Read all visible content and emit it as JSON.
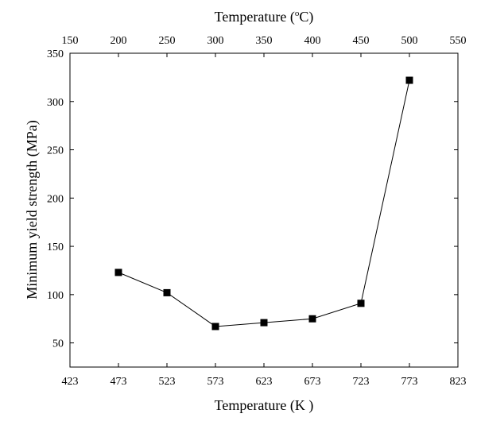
{
  "chart_data": {
    "type": "line",
    "xlabel": "Temperature (K )",
    "ylabel": "Minimum yield strength (MPa)",
    "x2label": "Temperature (°C)",
    "xlim": [
      423,
      823
    ],
    "ylim": [
      25,
      350
    ],
    "x_ticks": [
      423,
      473,
      523,
      573,
      623,
      673,
      723,
      773,
      823
    ],
    "x2_ticks": [
      150,
      200,
      250,
      300,
      350,
      400,
      450,
      500,
      550
    ],
    "y_ticks": [
      50,
      100,
      150,
      200,
      250,
      300,
      350
    ],
    "series": [
      {
        "x": [
          473,
          523,
          573,
          623,
          673,
          723,
          773
        ],
        "y": [
          123,
          102,
          67,
          71,
          75,
          91,
          322
        ]
      }
    ],
    "marker": "square",
    "line_color": "#000000",
    "marker_color": "#000000",
    "grid": false
  }
}
